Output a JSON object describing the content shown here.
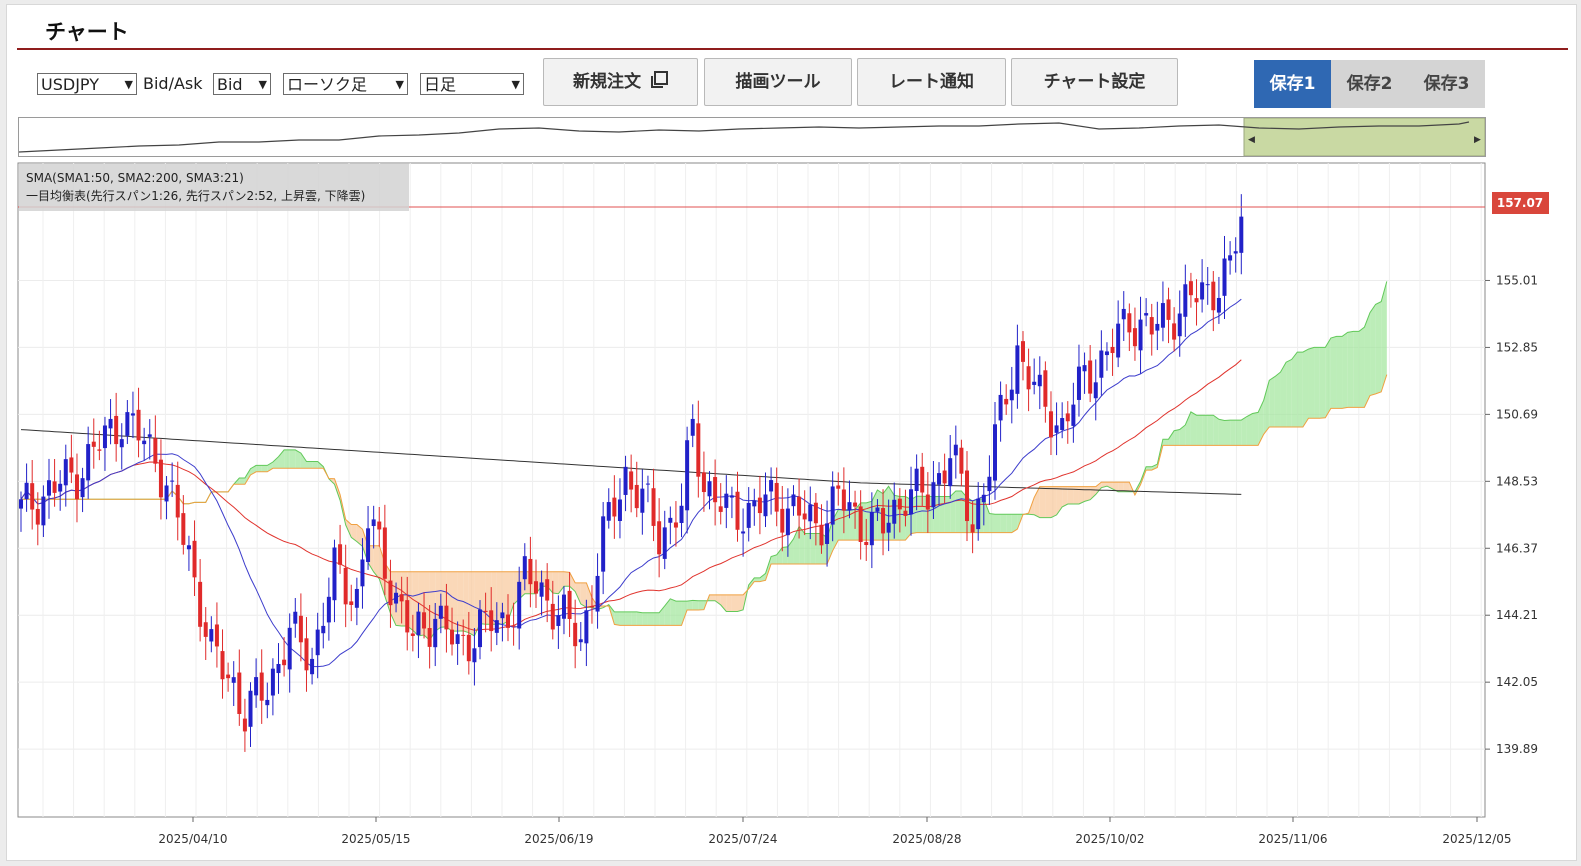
{
  "header": {
    "title": "チャート"
  },
  "toolbar": {
    "symbol": "USDJPY",
    "bidask_label": "Bid/Ask",
    "bidask_value": "Bid",
    "chart_type": "ローソク足",
    "timeframe": "日足",
    "buttons": {
      "new_order": "新規注文",
      "draw_tools": "描画ツール",
      "rate_alert": "レート通知",
      "chart_settings": "チャート設定"
    },
    "saves": [
      {
        "label": "保存1",
        "active": true
      },
      {
        "label": "保存2",
        "active": false
      },
      {
        "label": "保存3",
        "active": false
      }
    ]
  },
  "legend": {
    "line1": "SMA(SMA1:50, SMA2:200, SMA3:21)",
    "line2": "一目均衡表(先行スパン1:26, 先行スパン2:52, 上昇雲, 下降雲)"
  },
  "chart_data": {
    "type": "candlestick",
    "symbol": "USDJPY",
    "timeframe": "日足",
    "current_price": "157.07",
    "y_ticks": [
      "155.01",
      "152.85",
      "150.69",
      "148.53",
      "146.37",
      "144.21",
      "142.05",
      "139.89"
    ],
    "x_ticks": [
      "2025/04/10",
      "2025/05/15",
      "2025/06/19",
      "2025/07/24",
      "2025/08/28",
      "2025/10/02",
      "2025/11/06",
      "2025/12/05"
    ],
    "ylim": [
      137.7,
      158.8
    ],
    "approx_close_path": [
      [
        0,
        147.6
      ],
      [
        10,
        148.8
      ],
      [
        18,
        150.6
      ],
      [
        24,
        149.4
      ],
      [
        30,
        146.2
      ],
      [
        34,
        143.0
      ],
      [
        38,
        142.0
      ],
      [
        40,
        141.0
      ],
      [
        44,
        141.9
      ],
      [
        48,
        143.6
      ],
      [
        52,
        142.9
      ],
      [
        56,
        145.6
      ],
      [
        60,
        144.8
      ],
      [
        62,
        147.3
      ],
      [
        66,
        145.3
      ],
      [
        70,
        143.4
      ],
      [
        74,
        144.3
      ],
      [
        78,
        143.1
      ],
      [
        82,
        143.9
      ],
      [
        86,
        143.9
      ],
      [
        90,
        145.4
      ],
      [
        94,
        144.8
      ],
      [
        98,
        143.8
      ],
      [
        100,
        143.4
      ],
      [
        104,
        146.7
      ],
      [
        108,
        148.8
      ],
      [
        112,
        147.6
      ],
      [
        114,
        146.8
      ],
      [
        118,
        147.7
      ],
      [
        120,
        150.3
      ],
      [
        122,
        148.5
      ],
      [
        126,
        147.5
      ],
      [
        130,
        147.6
      ],
      [
        134,
        147.9
      ],
      [
        138,
        147.6
      ],
      [
        142,
        147.1
      ],
      [
        146,
        148.0
      ],
      [
        150,
        147.2
      ],
      [
        154,
        147.0
      ],
      [
        158,
        148.2
      ],
      [
        162,
        148.0
      ],
      [
        166,
        149.5
      ],
      [
        170,
        147.1
      ],
      [
        174,
        149.8
      ],
      [
        178,
        152.8
      ],
      [
        182,
        151.1
      ],
      [
        186,
        150.3
      ],
      [
        190,
        151.9
      ],
      [
        194,
        152.6
      ],
      [
        198,
        153.8
      ],
      [
        202,
        153.4
      ],
      [
        206,
        154.0
      ],
      [
        210,
        154.5
      ],
      [
        213,
        154.8
      ],
      [
        216,
        155.3
      ],
      [
        218,
        157.07
      ]
    ]
  }
}
